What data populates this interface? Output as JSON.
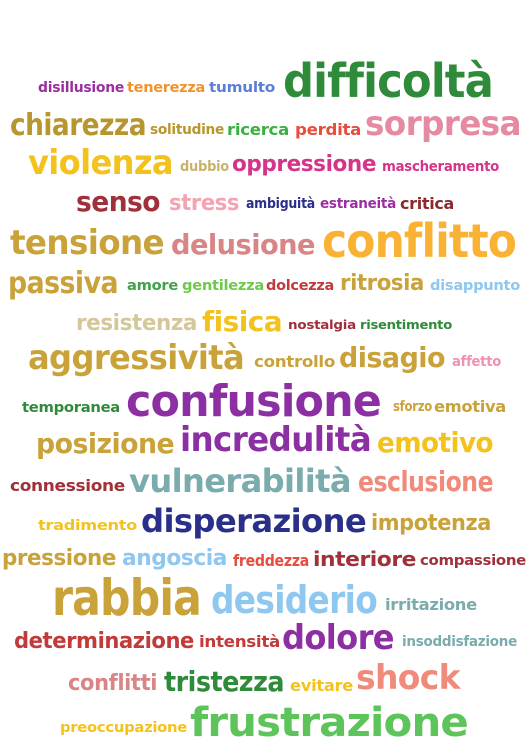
{
  "words": [
    {
      "text": "disillusione",
      "color": "#9b2fa0"
    },
    {
      "text": "tenerezza",
      "color": "#f0932b"
    },
    {
      "text": "tumulto",
      "color": "#5b7fd6"
    },
    {
      "text": "difficoltà",
      "color": "#2e8b3a"
    },
    {
      "text": "chiarezza",
      "color": "#b8962e"
    },
    {
      "text": "solitudine",
      "color": "#b8962e"
    },
    {
      "text": "ricerca",
      "color": "#3cb043"
    },
    {
      "text": "perdita",
      "color": "#e84c3d"
    },
    {
      "text": "sorpresa",
      "color": "#e58aa0"
    },
    {
      "text": "violenza",
      "color": "#f4c21d"
    },
    {
      "text": "dubbio",
      "color": "#c7b36a"
    },
    {
      "text": "oppressione",
      "color": "#d6338a"
    },
    {
      "text": "mascheramento",
      "color": "#d6338a"
    },
    {
      "text": "senso",
      "color": "#a0303a"
    },
    {
      "text": "stress",
      "color": "#f3a3b2"
    },
    {
      "text": "ambiguità",
      "color": "#2a2f8a"
    },
    {
      "text": "estraneità",
      "color": "#9b2fa0"
    },
    {
      "text": "critica",
      "color": "#8a2b2b"
    },
    {
      "text": "tensione",
      "color": "#c9a23a"
    },
    {
      "text": "delusione",
      "color": "#d98585"
    },
    {
      "text": "conflitto",
      "color": "#f9b234"
    },
    {
      "text": "passiva",
      "color": "#c9a23a"
    },
    {
      "text": "amore",
      "color": "#3ea34a"
    },
    {
      "text": "gentilezza",
      "color": "#6ccb4a"
    },
    {
      "text": "dolcezza",
      "color": "#c23a3a"
    },
    {
      "text": "ritrosia",
      "color": "#c9a23a"
    },
    {
      "text": "disappunto",
      "color": "#8ec7ef"
    },
    {
      "text": "resistenza",
      "color": "#d4c89a"
    },
    {
      "text": "fisica",
      "color": "#f4c21d"
    },
    {
      "text": "nostalgia",
      "color": "#a0303a"
    },
    {
      "text": "risentimento",
      "color": "#2e8b3a"
    },
    {
      "text": "aggressività",
      "color": "#c9a23a"
    },
    {
      "text": "controllo",
      "color": "#c9a23a"
    },
    {
      "text": "disagio",
      "color": "#c9a23a"
    },
    {
      "text": "affetto",
      "color": "#f28fb4"
    },
    {
      "text": "temporanea",
      "color": "#2e8b3a"
    },
    {
      "text": "confusione",
      "color": "#8c2fa3"
    },
    {
      "text": "sforzo",
      "color": "#c9a23a"
    },
    {
      "text": "emotiva",
      "color": "#c9a23a"
    },
    {
      "text": "posizione",
      "color": "#c9a23a"
    },
    {
      "text": "incredulità",
      "color": "#8c2fa3"
    },
    {
      "text": "emotivo",
      "color": "#f4c21d"
    },
    {
      "text": "connessione",
      "color": "#a0303a"
    },
    {
      "text": "vulnerabilità",
      "color": "#7aabad"
    },
    {
      "text": "esclusione",
      "color": "#f08a7a"
    },
    {
      "text": "tradimento",
      "color": "#f4c21d"
    },
    {
      "text": "disperazione",
      "color": "#2a2f8a"
    },
    {
      "text": "impotenza",
      "color": "#c9a23a"
    },
    {
      "text": "pressione",
      "color": "#c9a23a"
    },
    {
      "text": "angoscia",
      "color": "#8ec7ef"
    },
    {
      "text": "freddezza",
      "color": "#e84c3d"
    },
    {
      "text": "interiore",
      "color": "#a0303a"
    },
    {
      "text": "compassione",
      "color": "#a0303a"
    },
    {
      "text": "rabbia",
      "color": "#c9a23a"
    },
    {
      "text": "desiderio",
      "color": "#8ec7ef"
    },
    {
      "text": "irritazione",
      "color": "#7aabad"
    },
    {
      "text": "determinazione",
      "color": "#c23a3a"
    },
    {
      "text": "intensità",
      "color": "#c23a3a"
    },
    {
      "text": "dolore",
      "color": "#8c2fa3"
    },
    {
      "text": "insoddisfazione",
      "color": "#7aabad"
    },
    {
      "text": "conflitti",
      "color": "#d98585"
    },
    {
      "text": "tristezza",
      "color": "#2e8b3a"
    },
    {
      "text": "evitare",
      "color": "#f4c21d"
    },
    {
      "text": "shock",
      "color": "#f08a7a"
    },
    {
      "text": "preoccupazione",
      "color": "#f4c21d"
    },
    {
      "text": "frustrazione",
      "color": "#5cc45a"
    }
  ]
}
